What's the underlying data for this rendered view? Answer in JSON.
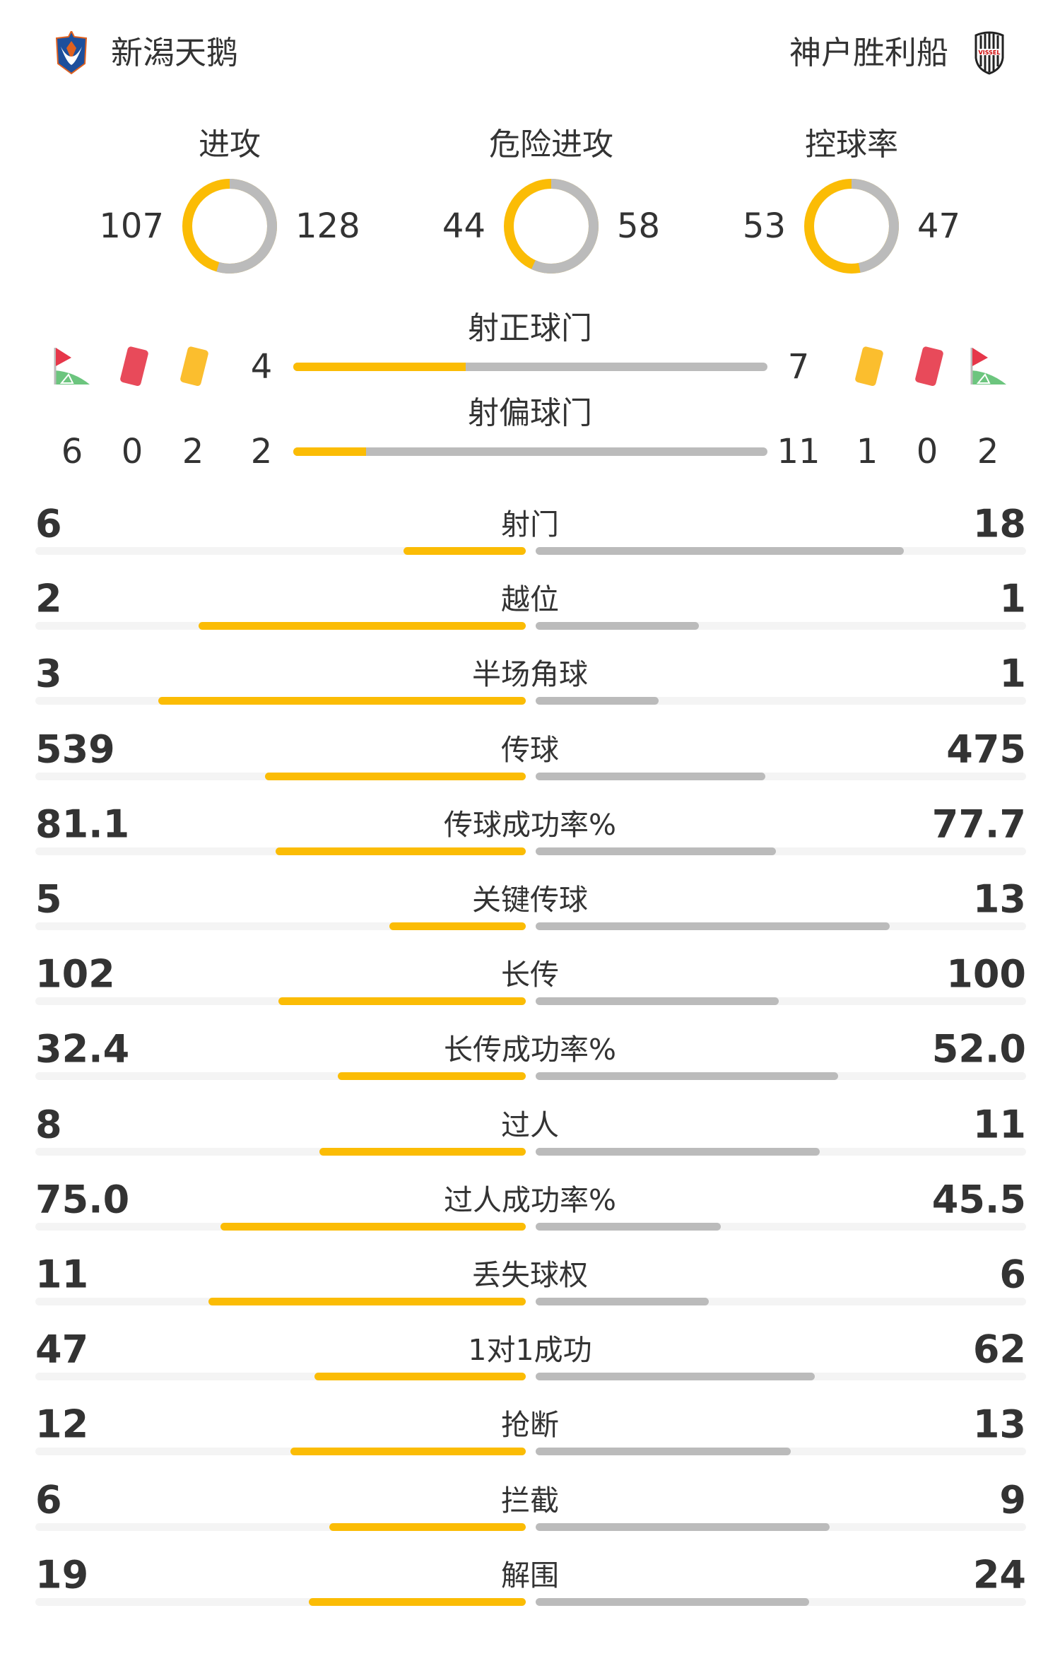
{
  "colors": {
    "home": "#fbbc05",
    "away": "#bbbbbb",
    "text": "#333333",
    "track": "#f4f4f4"
  },
  "home": {
    "name": "新潟天鹅",
    "logo": "albirex-niigata-crest"
  },
  "away": {
    "name": "神户胜利船",
    "logo": "vissel-kobe-crest",
    "logo_text": "VISSEL"
  },
  "donuts": [
    {
      "label": "进攻",
      "home": 107,
      "away": 128
    },
    {
      "label": "危险进攻",
      "home": 44,
      "away": 58
    },
    {
      "label": "控球率",
      "home": 53,
      "away": 47
    }
  ],
  "shots_on": {
    "label": "射正球门",
    "home": 4,
    "away": 7
  },
  "shots_off": {
    "label": "射偏球门",
    "home": 2,
    "away": 11
  },
  "discipline": {
    "home": {
      "corners": 6,
      "red_cards": 0,
      "yellow_cards": 2
    },
    "away": {
      "corners": 2,
      "red_cards": 0,
      "yellow_cards": 1
    }
  },
  "stats": [
    {
      "label": "射门",
      "home": "6",
      "away": "18"
    },
    {
      "label": "越位",
      "home": "2",
      "away": "1"
    },
    {
      "label": "半场角球",
      "home": "3",
      "away": "1"
    },
    {
      "label": "传球",
      "home": "539",
      "away": "475"
    },
    {
      "label": "传球成功率%",
      "home": "81.1",
      "away": "77.7"
    },
    {
      "label": "关键传球",
      "home": "5",
      "away": "13"
    },
    {
      "label": "长传",
      "home": "102",
      "away": "100"
    },
    {
      "label": "长传成功率%",
      "home": "32.4",
      "away": "52.0"
    },
    {
      "label": "过人",
      "home": "8",
      "away": "11"
    },
    {
      "label": "过人成功率%",
      "home": "75.0",
      "away": "45.5"
    },
    {
      "label": "丢失球权",
      "home": "11",
      "away": "6"
    },
    {
      "label": "1对1成功",
      "home": "47",
      "away": "62"
    },
    {
      "label": "抢断",
      "home": "12",
      "away": "13"
    },
    {
      "label": "拦截",
      "home": "6",
      "away": "9"
    },
    {
      "label": "解围",
      "home": "19",
      "away": "24"
    }
  ]
}
